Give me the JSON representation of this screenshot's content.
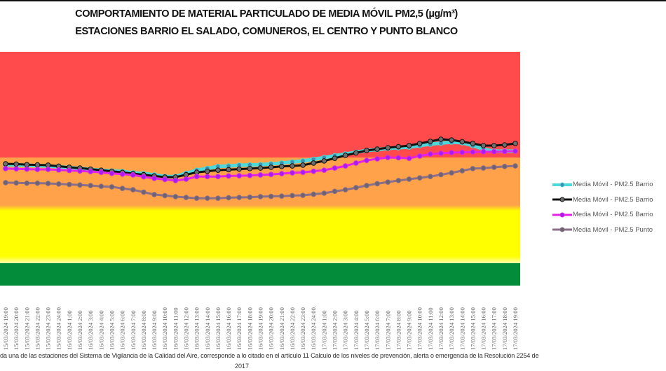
{
  "chart_data": {
    "type": "line",
    "title": "COMPORTAMIENTO DE MATERIAL PARTICULADO DE MEDIA MÓVIL PM2,5 (µg/m³)",
    "subtitle": "ESTACIONES BARRIO EL SALADO, COMUNEROS, EL CENTRO Y PUNTO BLANCO",
    "xlabel": "",
    "ylabel": "",
    "ylim": [
      0,
      150
    ],
    "grid": false,
    "legend_position": "right",
    "bands": [
      {
        "from": 0,
        "to": 12,
        "color": "#038C3A"
      },
      {
        "from": 12,
        "to": 37,
        "color": "#FFFF00"
      },
      {
        "from": 37,
        "to": 55,
        "color": "#FFA24A"
      },
      {
        "from": 55,
        "to": 150,
        "color": "#FF4B4B"
      }
    ],
    "categories": [
      "15/03/2024 19:00",
      "15/03/2024 20:00",
      "15/03/2024 21:00",
      "15/03/2024 22:00",
      "15/03/2024 23:00",
      "15/03/2024 24:00.",
      "16/03/2024 1:00",
      "16/03/2024 2:00",
      "16/03/2024 3:00",
      "16/03/2024 4:00",
      "16/03/2024 5:00",
      "16/03/2024 6:00",
      "16/03/2024 7:00",
      "16/03/2024 8:00",
      "16/03/2024 9:00",
      "16/03/2024 10:00",
      "16/03/2024 11:00",
      "16/03/2024 12:00",
      "16/03/2024 13:00",
      "16/03/2024 14:00",
      "16/03/2024 15:00",
      "16/03/2024 16:00",
      "16/03/2024 17:00",
      "16/03/2024 18:00",
      "16/03/2024 19:00",
      "16/03/2024 20:00",
      "16/03/2024 21:00",
      "16/03/2024 22:00",
      "16/03/2024 23:00",
      "16/03/2024 24:00.",
      "17/03/2024 1:00",
      "17/03/2024 2:00",
      "17/03/2024 3:00",
      "17/03/2024 4:00",
      "17/03/2024 5:00",
      "17/03/2024 6:00",
      "17/03/2024 7:00",
      "17/03/2024 8:00",
      "17/03/2024 9:00",
      "17/03/2024 10:00",
      "17/03/2024 11:00",
      "17/03/2024 12:00",
      "17/03/2024 13:00",
      "17/03/2024 14:00",
      "17/03/2024 15:00",
      "17/03/2024 16:00",
      "17/03/2024 17:00",
      "17/03/2024 18:00",
      "17/03/2024 19:00"
    ],
    "series": [
      {
        "name": "Media Móvil - PM2.5 Barrio",
        "color": "#4DD9D9",
        "marker_color": "#3E8FB0",
        "values": [
          52.3,
          52.2,
          52.1,
          51.9,
          51.8,
          51.5,
          51.2,
          50.9,
          50.5,
          50.2,
          49.9,
          49.7,
          49.2,
          48.9,
          48.4,
          47.8,
          47.8,
          49.0,
          50.2,
          50.9,
          51.6,
          51.8,
          52.1,
          52.2,
          52.3,
          52.6,
          52.9,
          53.3,
          53.7,
          54.3,
          55.0,
          56.6,
          58.1,
          59.7,
          61.3,
          62.2,
          63.2,
          63.8,
          64.4,
          65.7,
          67.0,
          67.9,
          68.8,
          68.2,
          65.7,
          62.5,
          60.7,
          60.7,
          60.7
        ]
      },
      {
        "name": "Media Móvil - PM2.5 Barrio",
        "color": "#111111",
        "marker_color": "#6E6E6E",
        "values": [
          52.6,
          52.5,
          52.3,
          52.2,
          52.1,
          51.7,
          51.3,
          51.0,
          50.6,
          50.2,
          49.8,
          49.4,
          48.9,
          48.5,
          48.0,
          47.6,
          47.6,
          48.5,
          49.4,
          49.8,
          50.2,
          50.4,
          50.6,
          50.8,
          51.0,
          51.3,
          51.6,
          51.8,
          52.1,
          52.9,
          53.7,
          54.7,
          56.9,
          59.1,
          61.3,
          62.5,
          63.8,
          64.7,
          65.7,
          67.6,
          69.5,
          71.4,
          70.7,
          69.2,
          67.6,
          65.7,
          65.7,
          66.3,
          67.6
        ]
      },
      {
        "name": "Media Móvil - PM2.5 Barrio",
        "color": "#E620E6",
        "marker_color": "#A020F0",
        "values": [
          50.8,
          50.7,
          50.6,
          50.5,
          50.5,
          50.3,
          50.1,
          49.9,
          49.7,
          49.4,
          49.0,
          48.7,
          48.4,
          47.7,
          47.1,
          46.7,
          46.3,
          46.8,
          47.8,
          47.8,
          47.8,
          48.0,
          48.1,
          48.2,
          48.4,
          48.6,
          48.9,
          49.2,
          49.4,
          49.8,
          50.2,
          51.0,
          51.8,
          52.9,
          53.9,
          54.5,
          55.0,
          54.9,
          54.7,
          56.3,
          58.1,
          58.8,
          59.4,
          59.7,
          60.0,
          60.2,
          60.3,
          60.5,
          60.7
        ]
      },
      {
        "name": "Media Móvil - PM2.5 Punto",
        "color": "#8A6E8A",
        "marker_color": "#6E6470",
        "values": [
          45.5,
          45.4,
          45.3,
          45.3,
          45.2,
          45.0,
          44.8,
          44.6,
          44.4,
          44.1,
          43.9,
          43.3,
          42.8,
          41.9,
          41.0,
          40.6,
          40.2,
          39.9,
          39.6,
          39.6,
          39.6,
          39.8,
          39.9,
          40.0,
          40.2,
          40.3,
          40.4,
          40.6,
          40.7,
          41.1,
          41.5,
          42.2,
          42.8,
          43.6,
          44.4,
          45.1,
          45.7,
          46.3,
          46.8,
          47.3,
          47.8,
          48.5,
          49.2,
          50.0,
          50.8,
          51.0,
          51.3,
          51.6,
          51.8
        ]
      }
    ]
  },
  "footer": {
    "line1": "da una de las estaciones del Sistema de Vigilancia de la Calidad del Aire, corresponde a lo citado en el artículo 11 Calculo de los niveles de prevención, alerta o emergencia de la Resolución 2254 de",
    "line2": "2017"
  }
}
